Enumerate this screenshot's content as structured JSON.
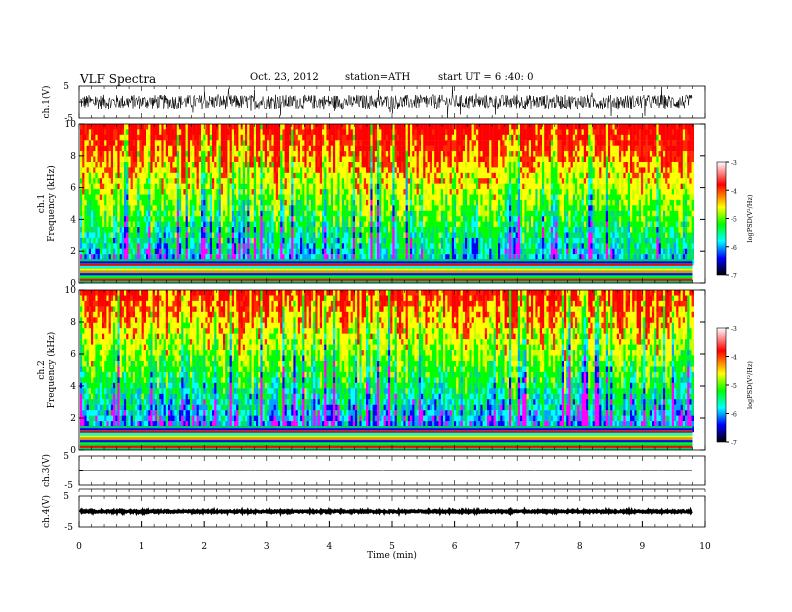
{
  "header": {
    "title": "VLF  Spectra",
    "date": "Oct. 23, 2012",
    "station": "station=ATH",
    "start": "start  UT =   6 :40: 0"
  },
  "colorbar": {
    "label": "logPSD(V²/Hz)",
    "ticks": [
      "-3",
      "-4",
      "-5",
      "-6",
      "-7"
    ],
    "colors": [
      "#ffffff",
      "#ff0000",
      "#ffff00",
      "#00ff00",
      "#00ffff",
      "#0000ff",
      "#000000"
    ]
  },
  "chart_data": [
    {
      "type": "line",
      "ylabel": "ch.1(V)",
      "ylim": [
        -5,
        5
      ],
      "yticks": [
        "5",
        "-5"
      ],
      "series": [
        {
          "description": "noisy waveform centered near 0 V, amplitude approx ±2 V with spikes to ±5 V",
          "values": []
        }
      ]
    },
    {
      "type": "heatmap",
      "ylabel": "ch.1\nFrequency  (kHz)",
      "ylim": [
        0,
        10
      ],
      "yticks": [
        "0",
        "2",
        "4",
        "6",
        "8",
        "10"
      ],
      "zlabel": "logPSD(V²/Hz)",
      "zlim": [
        -7,
        -3
      ]
    },
    {
      "type": "heatmap",
      "ylabel": "ch.2\nFrequency  (kHz)",
      "ylim": [
        0,
        10
      ],
      "yticks": [
        "0",
        "2",
        "4",
        "6",
        "8",
        "10"
      ],
      "zlabel": "logPSD(V²/Hz)",
      "zlim": [
        -7,
        -3
      ]
    },
    {
      "type": "line",
      "ylabel": "ch.3(V)",
      "ylim": [
        -5,
        5
      ],
      "yticks": [
        "5",
        "-5"
      ],
      "series": [
        {
          "description": "nearly flat trace near 0 V",
          "values": []
        }
      ]
    },
    {
      "type": "line",
      "ylabel": "ch.4(V)",
      "ylim": [
        -5,
        5
      ],
      "yticks": [
        "5",
        "-5"
      ],
      "series": [
        {
          "description": "thick flat band near 0 V",
          "values": []
        }
      ]
    }
  ],
  "xaxis": {
    "label": "Time  (min)",
    "xlim": [
      0,
      10
    ],
    "ticks": [
      "0",
      "1",
      "2",
      "3",
      "4",
      "5",
      "6",
      "7",
      "8",
      "9",
      "10"
    ],
    "data_end": 9.8
  }
}
